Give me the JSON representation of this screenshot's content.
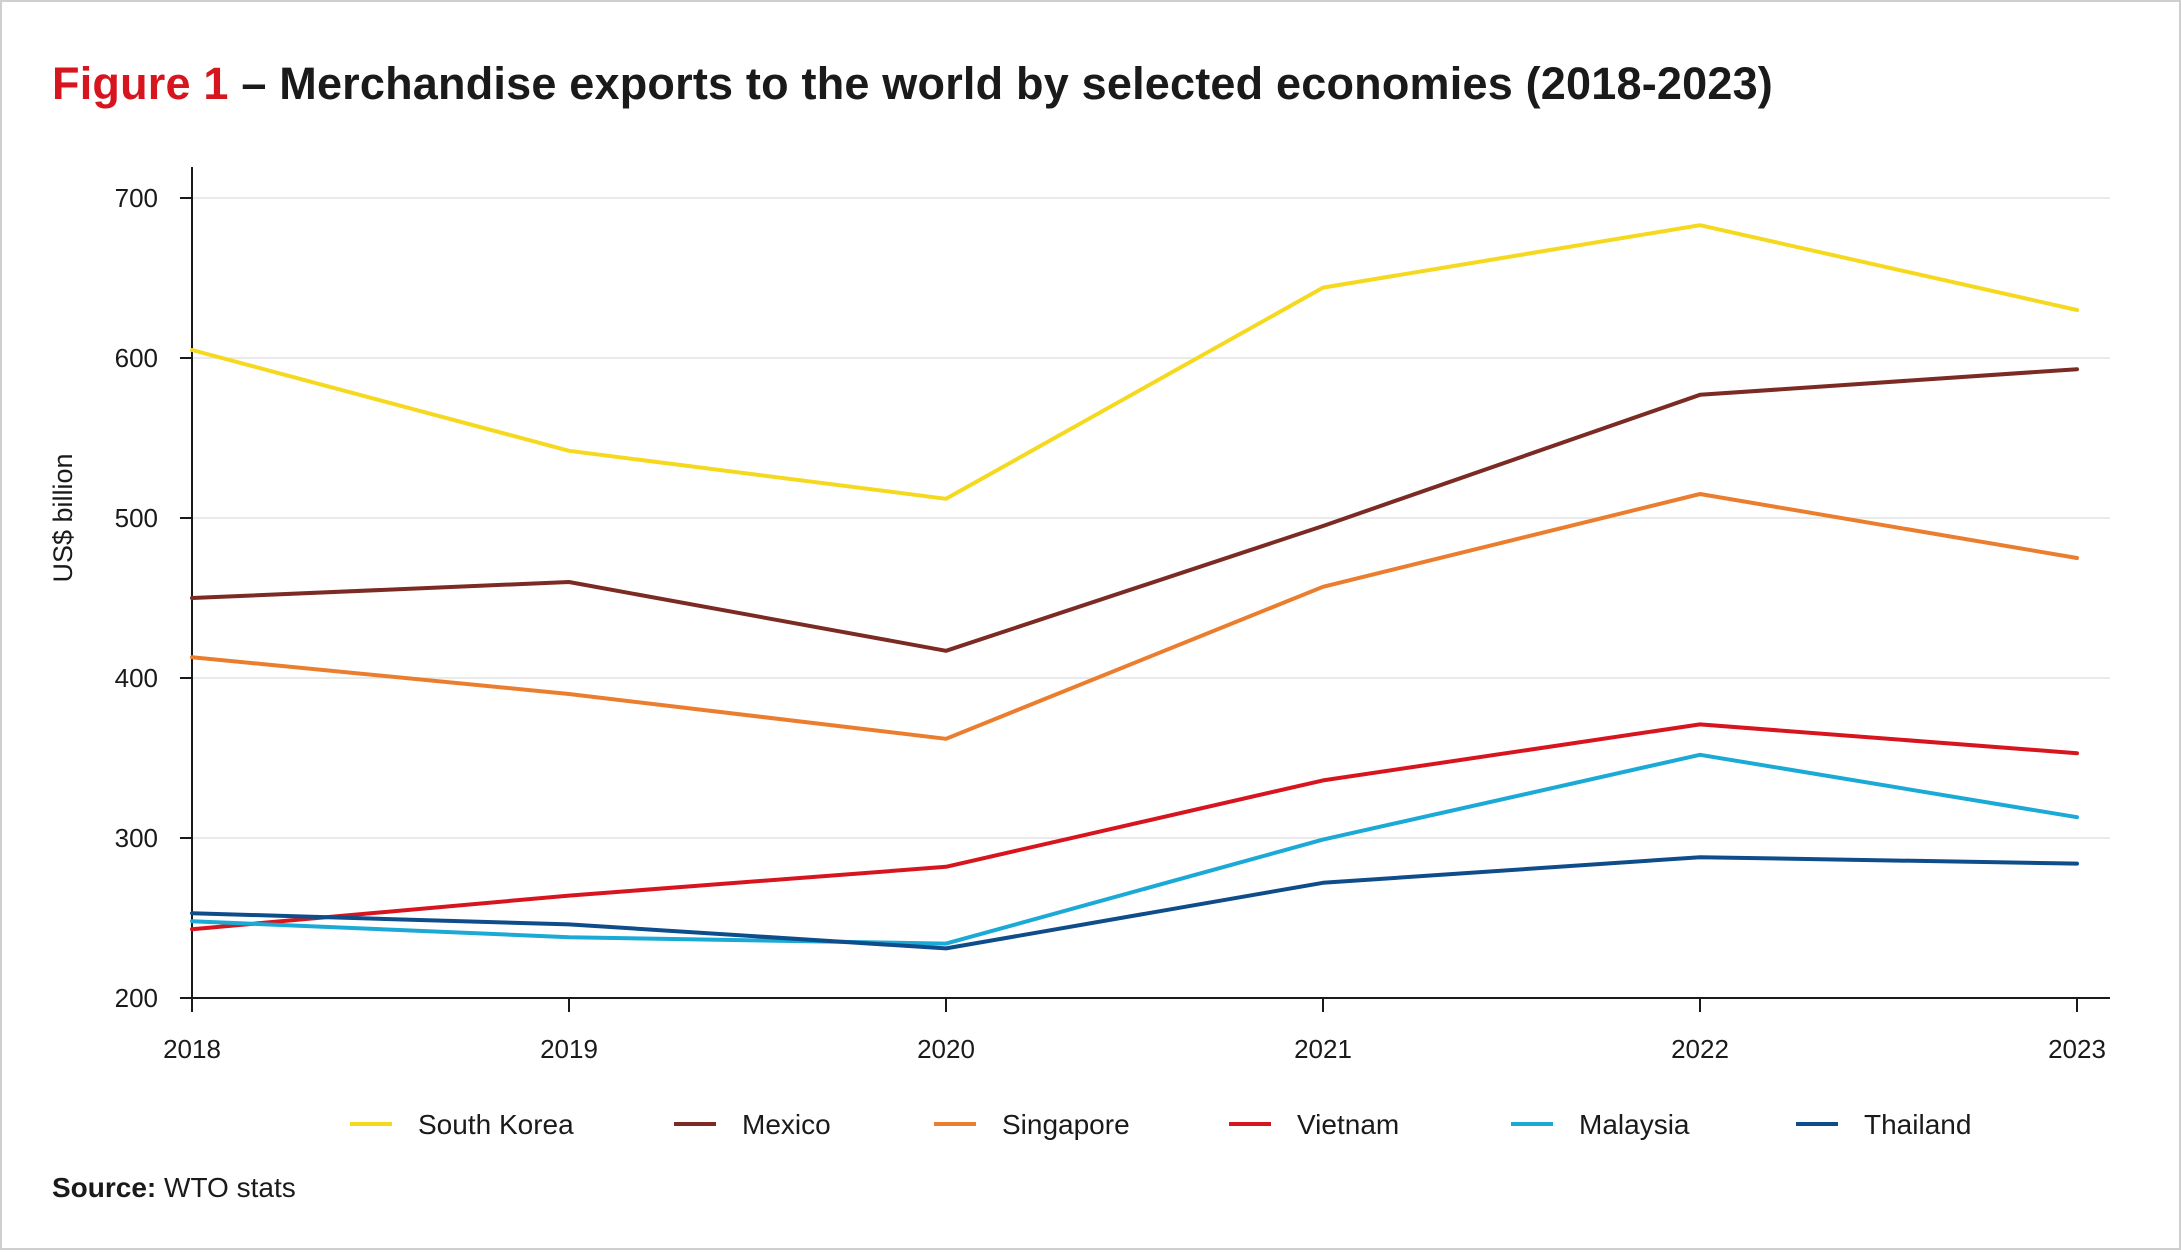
{
  "title": {
    "figure_label": "Figure 1",
    "text": " – Merchandise exports to the world by selected economies (2018-2023)"
  },
  "source": {
    "label": "Source:",
    "text": " WTO stats"
  },
  "chart_data": {
    "type": "line",
    "title": "Figure 1 – Merchandise exports to the world by selected economies (2018-2023)",
    "xlabel": "",
    "ylabel": "US$ billion",
    "x": [
      "2018",
      "2019",
      "2020",
      "2021",
      "2022",
      "2023"
    ],
    "ylim": [
      200,
      700
    ],
    "yticks": [
      200,
      300,
      400,
      500,
      600,
      700
    ],
    "grid": "horizontal",
    "legend": "bottom",
    "series": [
      {
        "name": "South Korea",
        "color": "#f5d91f",
        "values": [
          605,
          542,
          512,
          644,
          683,
          630
        ]
      },
      {
        "name": "Mexico",
        "color": "#7b2a24",
        "values": [
          450,
          460,
          417,
          495,
          577,
          593
        ]
      },
      {
        "name": "Singapore",
        "color": "#ea7e2e",
        "values": [
          413,
          390,
          362,
          457,
          515,
          475
        ]
      },
      {
        "name": "Vietnam",
        "color": "#d7151f",
        "values": [
          243,
          264,
          282,
          336,
          371,
          353
        ]
      },
      {
        "name": "Malaysia",
        "color": "#1ba9d6",
        "values": [
          248,
          238,
          234,
          299,
          352,
          313
        ]
      },
      {
        "name": "Thailand",
        "color": "#0e4c8a",
        "values": [
          253,
          246,
          231,
          272,
          288,
          284
        ]
      }
    ]
  }
}
